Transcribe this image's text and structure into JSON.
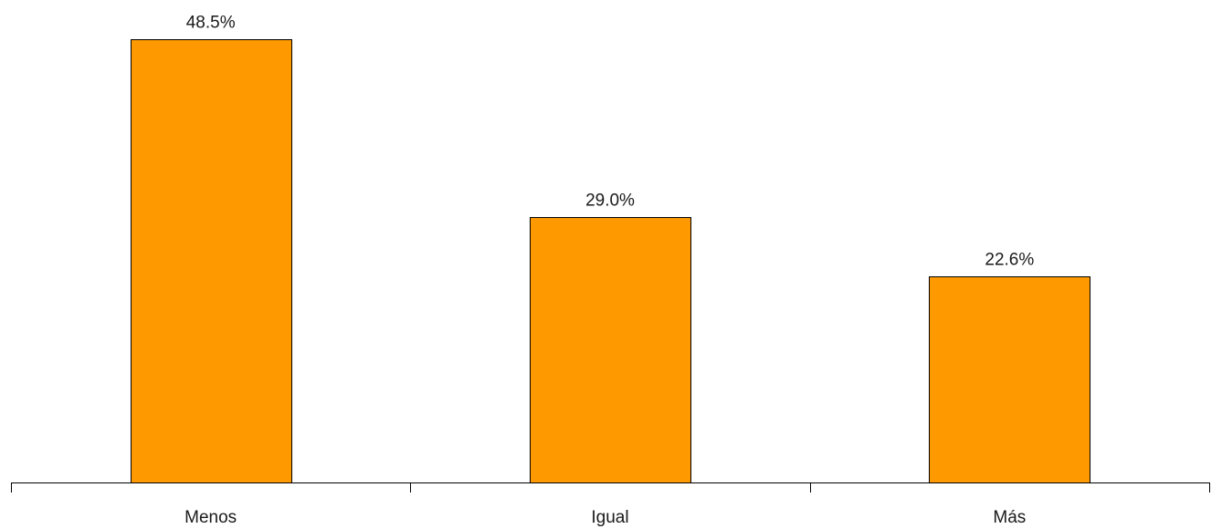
{
  "chart_data": {
    "type": "bar",
    "categories": [
      "Menos",
      "Igual",
      "Más"
    ],
    "values": [
      48.5,
      29.0,
      22.6
    ],
    "data_labels": [
      "48.5%",
      "29.0%",
      "22.6%"
    ],
    "title": "",
    "xlabel": "",
    "ylabel": "",
    "ylim": [
      0,
      48.5
    ],
    "grid": false,
    "legend": "none",
    "bar_color": "#ff9900",
    "bar_edge_color": "#000000"
  }
}
